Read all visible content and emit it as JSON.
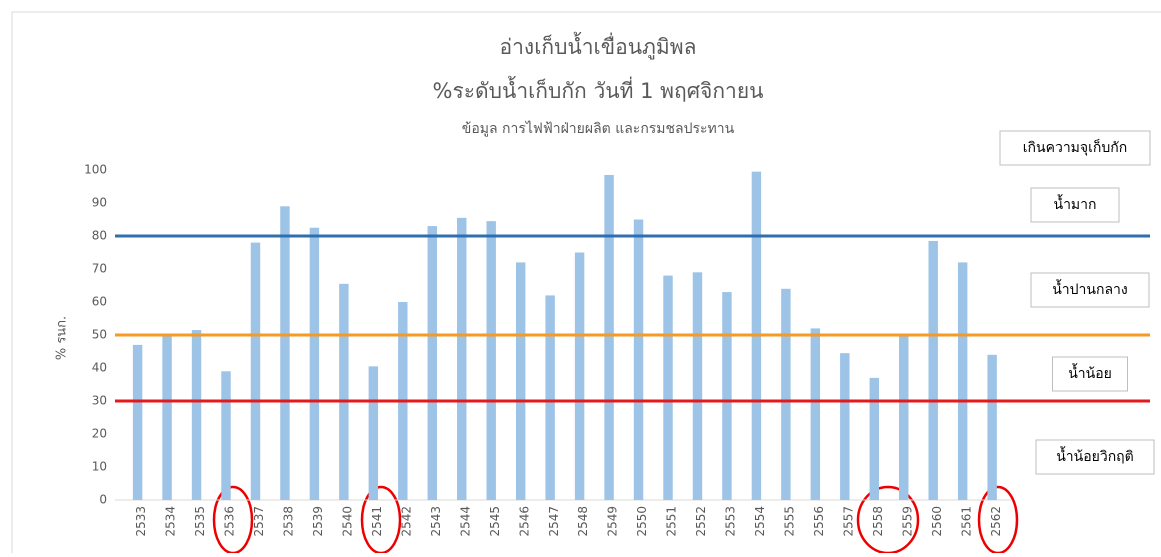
{
  "chart_data": {
    "type": "bar",
    "title": "อ่างเก็บน้ำเขื่อนภูมิพล",
    "subtitle": "%ระดับน้ำเก็บกัก วันที่ 1 พฤศจิกายน",
    "source": "ข้อมูล การไฟฟ้าฝ่ายผลิต และกรมชลประทาน",
    "y_label": "% รนก.",
    "categories": [
      "2533",
      "2534",
      "2535",
      "2536",
      "2537",
      "2538",
      "2539",
      "2540",
      "2541",
      "2542",
      "2543",
      "2544",
      "2545",
      "2546",
      "2547",
      "2548",
      "2549",
      "2550",
      "2551",
      "2552",
      "2553",
      "2554",
      "2555",
      "2556",
      "2557",
      "2558",
      "2559",
      "2560",
      "2561",
      "2562"
    ],
    "values": [
      47,
      50,
      51.5,
      39,
      78,
      89,
      82.5,
      65.5,
      40.5,
      60,
      83,
      85.5,
      84.5,
      72,
      62,
      75,
      98.5,
      85,
      68,
      69,
      63,
      99.5,
      64,
      52,
      44.5,
      37,
      50,
      78.5,
      72,
      44
    ],
    "color": "#9dc3e6",
    "ylim": [
      0,
      100
    ],
    "yticks": [
      0,
      10,
      20,
      30,
      40,
      50,
      60,
      70,
      80,
      90,
      100
    ],
    "reference_lines": [
      {
        "value": 80,
        "color": "#2e6fb0"
      },
      {
        "value": 50,
        "color": "#f59a23"
      },
      {
        "value": 30,
        "color": "#e31a1c"
      }
    ],
    "zone_labels": [
      "เกินความจุเก็บกัก",
      "น้ำมาก",
      "น้ำปานกลาง",
      "น้ำน้อย",
      "น้ำน้อยวิกฤติ"
    ]
  }
}
